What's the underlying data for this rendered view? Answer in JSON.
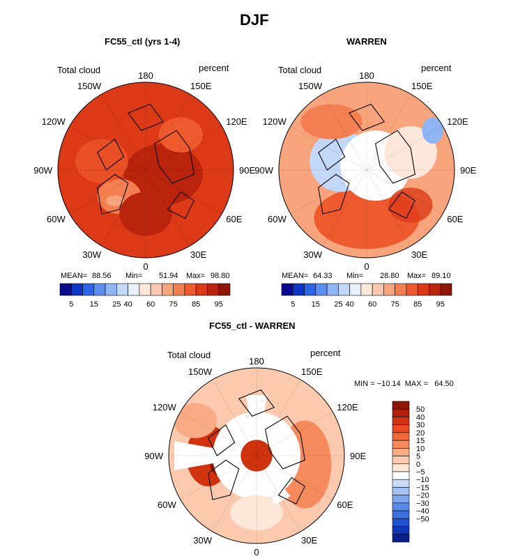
{
  "figure_title": "DJF",
  "chart_data": [
    {
      "type": "polar-map",
      "title": "FC55_ctl (yrs 1-4)",
      "variable": "Total cloud",
      "units": "percent",
      "lon_labels": [
        "180",
        "150E",
        "120E",
        "90E",
        "60E",
        "30E",
        "0",
        "30W",
        "60W",
        "90W",
        "120W",
        "150W"
      ],
      "stats": {
        "mean_label": "MEAN=",
        "mean": "88.56",
        "min_label": "Min=",
        "min": "51.94",
        "max_label": "Max=",
        "max": "98.80"
      },
      "colorbar": {
        "orientation": "horizontal",
        "colors": [
          "#0a0a8c",
          "#0b36c8",
          "#2d63e6",
          "#5a8ef0",
          "#8fb5f5",
          "#c3d8f8",
          "#e8f0fb",
          "#fde7da",
          "#fbc8ad",
          "#f8a47c",
          "#f47f51",
          "#ee5a2e",
          "#dc3a16",
          "#bb240c",
          "#8e1606"
        ],
        "tick_labels": [
          "5",
          "15",
          "25",
          "40",
          "60",
          "75",
          "85",
          "95"
        ]
      }
    },
    {
      "type": "polar-map",
      "title": "WARREN",
      "variable": "Total cloud",
      "units": "percent",
      "lon_labels": [
        "180",
        "150E",
        "120E",
        "90E",
        "60E",
        "30E",
        "0",
        "30W",
        "60W",
        "90W",
        "120W",
        "150W"
      ],
      "stats": {
        "mean_label": "MEAN=",
        "mean": "64.33",
        "min_label": "Min=",
        "min": "28.80",
        "max_label": "Max=",
        "max": "89.10"
      },
      "colorbar": {
        "orientation": "horizontal",
        "colors": [
          "#0a0a8c",
          "#0b36c8",
          "#2d63e6",
          "#5a8ef0",
          "#8fb5f5",
          "#c3d8f8",
          "#e8f0fb",
          "#fde7da",
          "#fbc8ad",
          "#f8a47c",
          "#f47f51",
          "#ee5a2e",
          "#dc3a16",
          "#bb240c",
          "#8e1606"
        ],
        "tick_labels": [
          "5",
          "15",
          "25",
          "40",
          "60",
          "75",
          "85",
          "95"
        ]
      }
    },
    {
      "type": "polar-map",
      "title": "FC55_ctl - WARREN",
      "variable": "Total cloud",
      "units": "percent",
      "lon_labels": [
        "180",
        "150E",
        "120E",
        "90E",
        "60E",
        "30E",
        "0",
        "30W",
        "60W",
        "90W",
        "120W",
        "150W"
      ],
      "minmax_text": "MIN = −10.14  MAX =   64.50",
      "colorbar": {
        "orientation": "vertical",
        "colors": [
          "#8e1606",
          "#b0200a",
          "#d2330f",
          "#ea4a1e",
          "#f26a3a",
          "#f58a5c",
          "#f8ab85",
          "#fbcaae",
          "#fde8d8",
          "#ffffff",
          "#c9dcf8",
          "#a3c2f4",
          "#7ea6ee",
          "#5a8ae8",
          "#3a6fe0",
          "#1f53d2",
          "#0e37b8",
          "#0a1e8c"
        ],
        "tick_labels": [
          "50",
          "40",
          "30",
          "20",
          "15",
          "10",
          "5",
          "0",
          "−5",
          "−10",
          "−15",
          "−20",
          "−30",
          "−40",
          "−50"
        ]
      }
    }
  ]
}
